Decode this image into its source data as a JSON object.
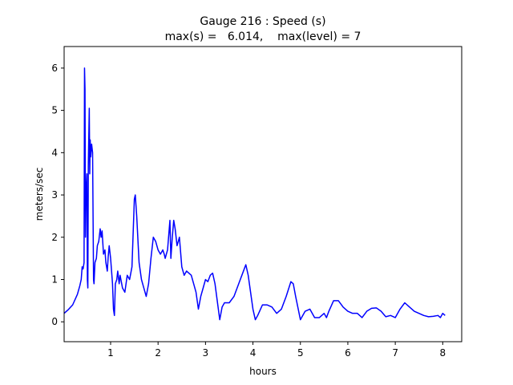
{
  "chart_data": {
    "type": "line",
    "title": "Gauge 216 : Speed (s)",
    "subtitle": "max(s) =   6.014,    max(level) = 7",
    "xlabel": "hours",
    "ylabel": "meters/sec",
    "xlim": [
      0.02,
      8.4
    ],
    "ylim": [
      -0.47,
      6.51
    ],
    "xticks": [
      1,
      2,
      3,
      4,
      5,
      6,
      7,
      8
    ],
    "yticks": [
      0,
      1,
      2,
      3,
      4,
      5,
      6
    ],
    "grid": false,
    "series": [
      {
        "color": "#0000ff",
        "x": [
          0.02,
          0.1,
          0.2,
          0.3,
          0.35,
          0.38,
          0.4,
          0.42,
          0.44,
          0.45,
          0.46,
          0.47,
          0.48,
          0.5,
          0.51,
          0.52,
          0.53,
          0.55,
          0.56,
          0.57,
          0.58,
          0.6,
          0.62,
          0.64,
          0.65,
          0.67,
          0.7,
          0.72,
          0.75,
          0.78,
          0.8,
          0.82,
          0.85,
          0.88,
          0.9,
          0.93,
          0.95,
          0.97,
          1.0,
          1.02,
          1.04,
          1.06,
          1.08,
          1.1,
          1.13,
          1.15,
          1.18,
          1.2,
          1.25,
          1.3,
          1.35,
          1.4,
          1.45,
          1.5,
          1.52,
          1.55,
          1.6,
          1.65,
          1.7,
          1.75,
          1.8,
          1.85,
          1.9,
          1.95,
          2.0,
          2.05,
          2.1,
          2.13,
          2.15,
          2.2,
          2.25,
          2.27,
          2.3,
          2.33,
          2.36,
          2.4,
          2.45,
          2.5,
          2.55,
          2.6,
          2.7,
          2.8,
          2.85,
          2.9,
          3.0,
          3.05,
          3.1,
          3.15,
          3.2,
          3.3,
          3.35,
          3.4,
          3.5,
          3.6,
          3.7,
          3.8,
          3.85,
          3.9,
          4.0,
          4.05,
          4.1,
          4.2,
          4.3,
          4.4,
          4.5,
          4.6,
          4.7,
          4.8,
          4.85,
          4.9,
          5.0,
          5.1,
          5.2,
          5.3,
          5.4,
          5.5,
          5.55,
          5.6,
          5.7,
          5.8,
          5.9,
          6.0,
          6.1,
          6.2,
          6.3,
          6.4,
          6.5,
          6.6,
          6.7,
          6.8,
          6.9,
          7.0,
          7.1,
          7.2,
          7.3,
          7.4,
          7.5,
          7.6,
          7.7,
          7.8,
          7.9,
          7.95,
          8.0,
          8.05
        ],
        "values": [
          0.2,
          0.28,
          0.4,
          0.65,
          0.85,
          1.0,
          1.3,
          1.25,
          1.4,
          6.0,
          5.5,
          2.0,
          3.0,
          3.5,
          1.0,
          0.8,
          3.7,
          5.05,
          3.5,
          4.3,
          3.9,
          4.2,
          4.0,
          1.0,
          0.9,
          1.4,
          1.5,
          1.8,
          1.9,
          2.2,
          2.0,
          2.15,
          1.6,
          1.7,
          1.4,
          1.2,
          1.55,
          1.8,
          1.5,
          1.2,
          0.9,
          0.3,
          0.15,
          0.9,
          1.0,
          1.2,
          0.9,
          1.1,
          0.8,
          0.7,
          1.1,
          1.0,
          1.3,
          2.9,
          3.0,
          2.5,
          1.4,
          1.0,
          0.8,
          0.6,
          0.9,
          1.5,
          2.0,
          1.9,
          1.7,
          1.6,
          1.7,
          1.6,
          1.5,
          1.7,
          2.4,
          1.5,
          2.0,
          2.4,
          2.2,
          1.8,
          2.0,
          1.3,
          1.1,
          1.2,
          1.1,
          0.7,
          0.3,
          0.6,
          1.0,
          0.95,
          1.1,
          1.15,
          0.9,
          0.05,
          0.35,
          0.45,
          0.45,
          0.6,
          0.9,
          1.2,
          1.35,
          1.1,
          0.3,
          0.05,
          0.15,
          0.4,
          0.4,
          0.35,
          0.2,
          0.3,
          0.6,
          0.95,
          0.9,
          0.6,
          0.05,
          0.25,
          0.3,
          0.1,
          0.1,
          0.2,
          0.1,
          0.25,
          0.5,
          0.5,
          0.35,
          0.25,
          0.2,
          0.2,
          0.1,
          0.25,
          0.32,
          0.33,
          0.25,
          0.12,
          0.15,
          0.1,
          0.3,
          0.45,
          0.35,
          0.25,
          0.2,
          0.15,
          0.12,
          0.13,
          0.15,
          0.1,
          0.2,
          0.15
        ]
      }
    ]
  }
}
